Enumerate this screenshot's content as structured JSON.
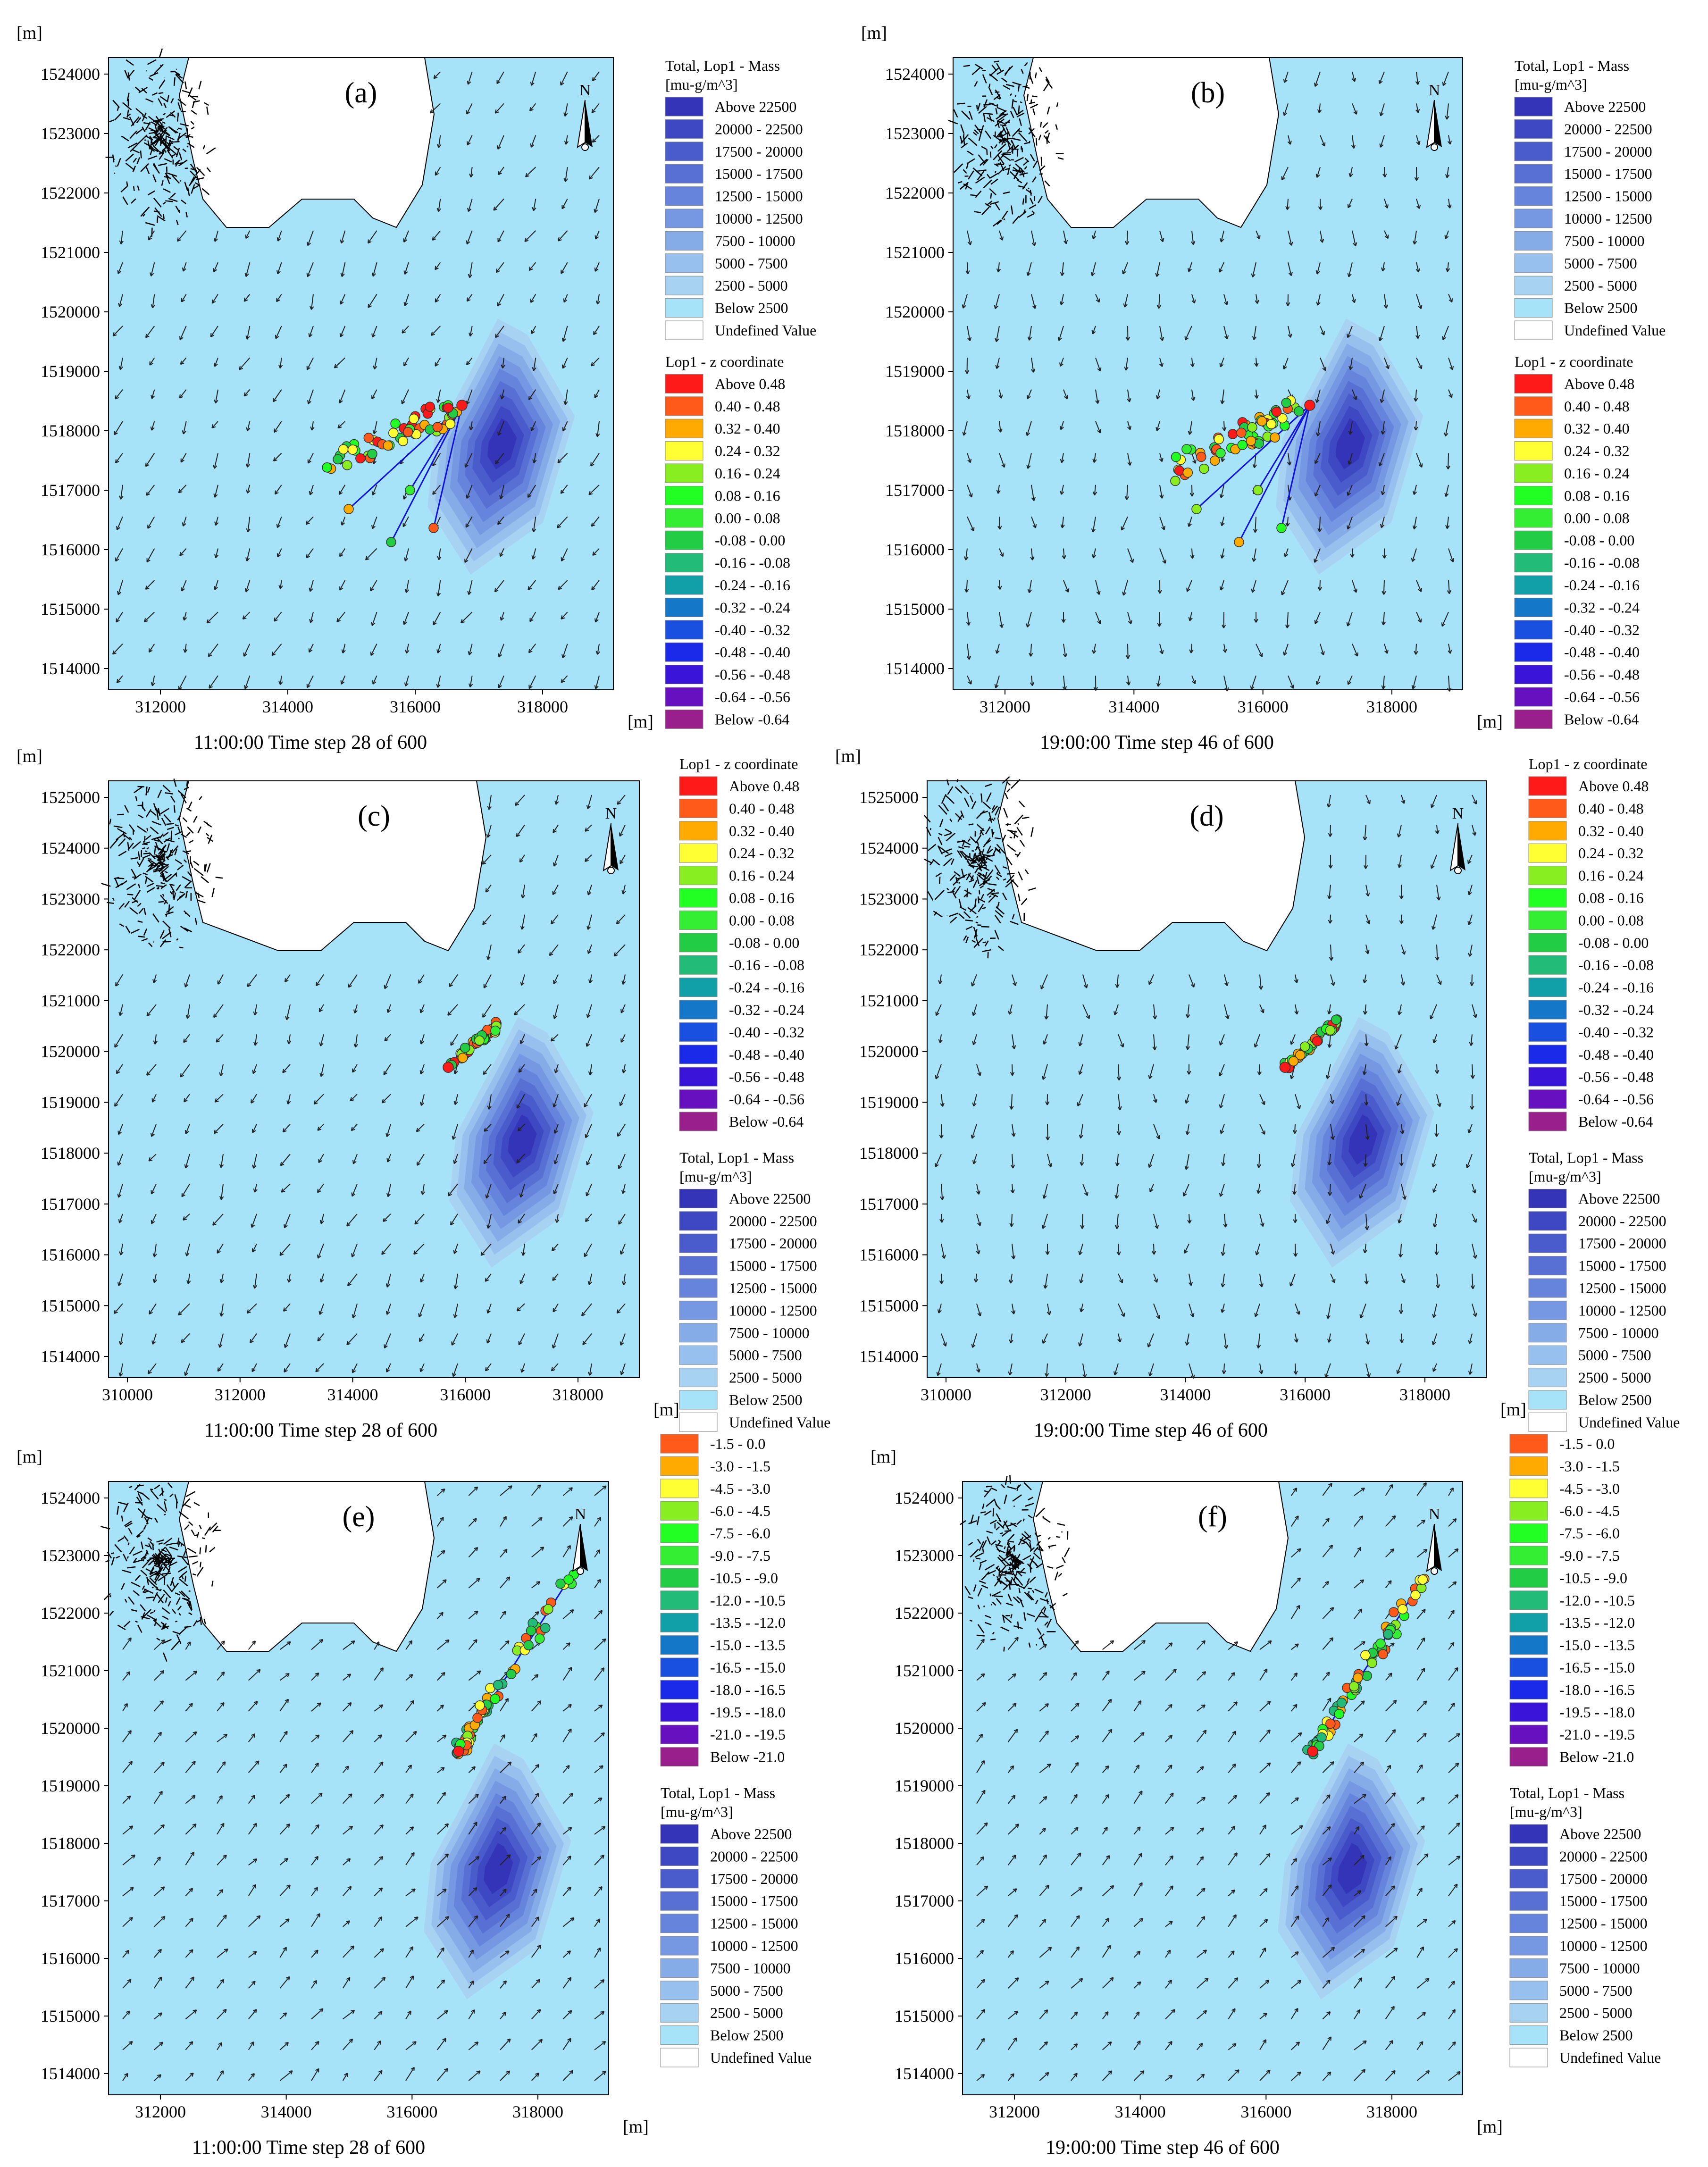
{
  "units": {
    "m": "[m]"
  },
  "mass_legend": {
    "title1": "Total, Lop1 - Mass",
    "title2": "[mu-g/m^3]",
    "entries": [
      {
        "label": "Above  22500",
        "color": "#3434b8"
      },
      {
        "label": "20000 - 22500",
        "color": "#3e48c2"
      },
      {
        "label": "17500 - 20000",
        "color": "#4a5ccc"
      },
      {
        "label": "15000 - 17500",
        "color": "#5870d4"
      },
      {
        "label": "12500 - 15000",
        "color": "#6684dc"
      },
      {
        "label": "10000 - 12500",
        "color": "#7698e2"
      },
      {
        "label": "7500 - 10000",
        "color": "#86ace8"
      },
      {
        "label": "5000 -  7500",
        "color": "#98c0ee"
      },
      {
        "label": "2500 -  5000",
        "color": "#a8d2f2"
      },
      {
        "label": "Below    2500",
        "color": "#a6e2f8"
      },
      {
        "label": "Undefined Value",
        "color": "#ffffff"
      }
    ]
  },
  "z_legend": {
    "title": "Lop1 - z coordinate",
    "entries": [
      {
        "label": "Above  0.48",
        "color": "#ff1a1a"
      },
      {
        "label": "0.40 -  0.48",
        "color": "#ff5a1a"
      },
      {
        "label": "0.32 -  0.40",
        "color": "#ffaa00"
      },
      {
        "label": "0.24 -  0.32",
        "color": "#ffff33"
      },
      {
        "label": "0.16 -  0.24",
        "color": "#88ee22"
      },
      {
        "label": "0.08 -  0.16",
        "color": "#22ff22"
      },
      {
        "label": "0.00 -  0.08",
        "color": "#33ee33"
      },
      {
        "label": "-0.08 -  0.00",
        "color": "#22cc44"
      },
      {
        "label": "-0.16 - -0.08",
        "color": "#22bb77"
      },
      {
        "label": "-0.24 - -0.16",
        "color": "#11a0a8"
      },
      {
        "label": "-0.32 - -0.24",
        "color": "#1477c8"
      },
      {
        "label": "-0.40 - -0.32",
        "color": "#1a50e0"
      },
      {
        "label": "-0.48 - -0.40",
        "color": "#1a2ae8"
      },
      {
        "label": "-0.56 - -0.48",
        "color": "#3a14d8"
      },
      {
        "label": "-0.64 - -0.56",
        "color": "#6610c0"
      },
      {
        "label": "Below -0.64",
        "color": "#991f8c"
      }
    ]
  },
  "depth_legend": {
    "entries": [
      {
        "label": "-1.5 -   0.0",
        "color": "#ff5a1a"
      },
      {
        "label": "-3.0 -  -1.5",
        "color": "#ffaa00"
      },
      {
        "label": "-4.5 -  -3.0",
        "color": "#ffff33"
      },
      {
        "label": "-6.0 -  -4.5",
        "color": "#88ee22"
      },
      {
        "label": "-7.5 -  -6.0",
        "color": "#22ff22"
      },
      {
        "label": "-9.0 -  -7.5",
        "color": "#33ee33"
      },
      {
        "label": "-10.5 -  -9.0",
        "color": "#22cc44"
      },
      {
        "label": "-12.0 - -10.5",
        "color": "#22bb77"
      },
      {
        "label": "-13.5 - -12.0",
        "color": "#11a0a8"
      },
      {
        "label": "-15.0 - -13.5",
        "color": "#1477c8"
      },
      {
        "label": "-16.5 - -15.0",
        "color": "#1a50e0"
      },
      {
        "label": "-18.0 - -16.5",
        "color": "#1a2ae8"
      },
      {
        "label": "-19.5 - -18.0",
        "color": "#3a14d8"
      },
      {
        "label": "-21.0 - -19.5",
        "color": "#6610c0"
      },
      {
        "label": "Below -21.0",
        "color": "#991f8c"
      }
    ]
  },
  "x_ticks": [
    "312000",
    "314000",
    "316000",
    "318000"
  ],
  "x_ticks_cd": [
    "310000",
    "312000",
    "314000",
    "316000",
    "318000"
  ],
  "y_ticks_ab": [
    "1524000",
    "1523000",
    "1522000",
    "1521000",
    "1520000",
    "1519000",
    "1518000",
    "1517000",
    "1516000",
    "1515000",
    "1514000"
  ],
  "y_ticks_cd": [
    "1525000",
    "1524000",
    "1523000",
    "1522000",
    "1521000",
    "1520000",
    "1519000",
    "1518000",
    "1517000",
    "1516000",
    "1515000",
    "1514000"
  ],
  "north": "N",
  "panels": [
    {
      "id": "a",
      "label": "(a)",
      "caption": "11:00:00  Time step 28 of 600"
    },
    {
      "id": "b",
      "label": "(b)",
      "caption": "19:00:00  Time step 46 of 600"
    },
    {
      "id": "c",
      "label": "(c)",
      "caption": "11:00:00  Time step 28 of 600"
    },
    {
      "id": "d",
      "label": "(d)",
      "caption": "19:00:00  Time step 46 of 600"
    },
    {
      "id": "e",
      "label": "(e)",
      "caption": "11:00:00  Time step 28 of 600"
    },
    {
      "id": "f",
      "label": "(f)",
      "caption": "19:00:00  Time step 46 of 600"
    }
  ],
  "colors": {
    "water": "#a6e2f8",
    "land": "#ffffff",
    "track": "#1010dd"
  }
}
